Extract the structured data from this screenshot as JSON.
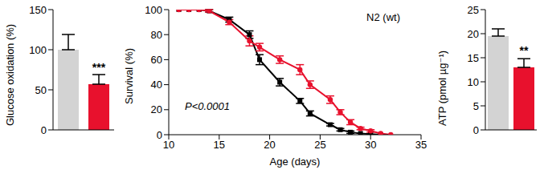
{
  "chart_data": [
    {
      "type": "bar",
      "y_label": "Glucose oxidation (%)",
      "categories": [
        null,
        null
      ],
      "values": [
        100,
        57
      ],
      "errors": [
        19,
        12
      ],
      "colors": [
        "#d3d3d3",
        "#e8112d"
      ],
      "ylim": [
        0,
        150
      ],
      "yticks": [
        0,
        50,
        100,
        150
      ],
      "annotation": "***"
    },
    {
      "type": "line",
      "title": "N2 (wt)",
      "annotation": "P<0.0001",
      "x_label": "Age (days)",
      "y_label": "Survival (%)",
      "x": [
        11,
        12,
        13,
        14,
        16,
        18,
        19,
        21,
        23,
        24,
        26,
        27,
        28,
        29,
        30,
        31,
        32
      ],
      "series": [
        {
          "color": "#000000",
          "marker": "square",
          "values": [
            100,
            100,
            100,
            99,
            92,
            80,
            60,
            42,
            27,
            17,
            8,
            4,
            2,
            1,
            0.5,
            0,
            null
          ],
          "errors": [
            0,
            0,
            0,
            1,
            2,
            3,
            4,
            3,
            2,
            2,
            1,
            1,
            1,
            0,
            0,
            0,
            null
          ]
        },
        {
          "color": "#e8112d",
          "marker": "circle",
          "values": [
            100,
            100,
            100,
            99,
            90,
            75,
            70,
            60,
            52,
            40,
            28,
            18,
            10,
            5,
            3,
            1,
            0
          ],
          "errors": [
            0,
            0,
            0,
            1,
            2,
            4,
            3,
            3,
            4,
            3,
            3,
            2,
            2,
            1,
            1,
            0,
            0
          ]
        }
      ],
      "xlim": [
        10,
        35
      ],
      "xticks": [
        10,
        15,
        20,
        25,
        30,
        35
      ],
      "ylim": [
        0,
        100
      ],
      "yticks": [
        0,
        20,
        40,
        60,
        80,
        100
      ]
    },
    {
      "type": "bar",
      "y_label": "ATP (pmol µg⁻¹)",
      "categories": [
        null,
        null
      ],
      "values": [
        19.5,
        13
      ],
      "errors": [
        1.5,
        1.8
      ],
      "colors": [
        "#d3d3d3",
        "#e8112d"
      ],
      "ylim": [
        0,
        25
      ],
      "yticks": [
        0,
        5,
        10,
        15,
        20,
        25
      ],
      "annotation": "**"
    }
  ]
}
